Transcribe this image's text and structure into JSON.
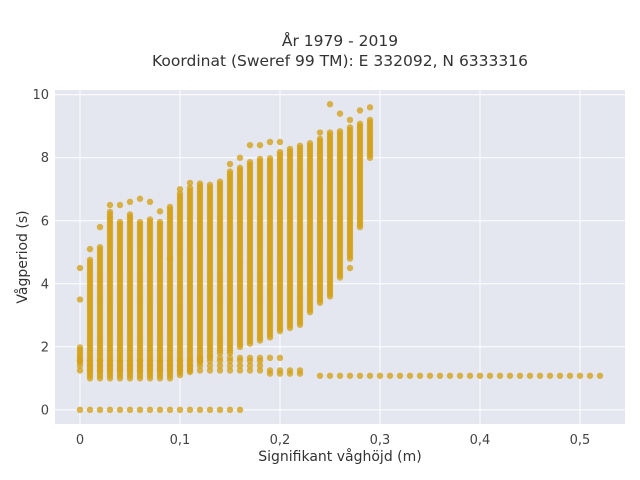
{
  "chart_data": {
    "type": "scatter",
    "title": "År 1979 - 2019",
    "subtitle": "Koordinat (Sweref 99 TM): E 332092, N 6333316",
    "xlabel": "Signifikant våghöjd (m)",
    "ylabel": "Vågperiod (s)",
    "xlim": [
      -0.025,
      0.545
    ],
    "ylim": [
      -0.45,
      10.15
    ],
    "x_ticks": [
      0,
      0.1,
      0.2,
      0.3,
      0.4,
      0.5
    ],
    "x_tick_labels": [
      "0",
      "0,1",
      "0,2",
      "0,3",
      "0,4",
      "0,5"
    ],
    "y_ticks": [
      0,
      2,
      4,
      6,
      8,
      10
    ],
    "y_tick_labels": [
      "0",
      "2",
      "4",
      "6",
      "8",
      "10"
    ],
    "grid": true,
    "background": "#e5e7f0",
    "marker_color": "#d4a017",
    "legend": "none",
    "x_step": 0.01,
    "clusters": [
      {
        "x": 0.0,
        "y_min": 1.5,
        "y_max": 2.0,
        "outliers": [
          3.5,
          4.5
        ]
      },
      {
        "x": 0.01,
        "y_min": 1.0,
        "y_max": 4.8,
        "outliers": [
          5.1
        ]
      },
      {
        "x": 0.02,
        "y_min": 1.0,
        "y_max": 5.2,
        "outliers": [
          5.8
        ]
      },
      {
        "x": 0.03,
        "y_min": 1.0,
        "y_max": 6.3,
        "outliers": [
          6.5
        ]
      },
      {
        "x": 0.04,
        "y_min": 1.0,
        "y_max": 6.0,
        "outliers": [
          6.5
        ]
      },
      {
        "x": 0.05,
        "y_min": 1.0,
        "y_max": 6.2,
        "outliers": [
          6.6
        ]
      },
      {
        "x": 0.06,
        "y_min": 1.0,
        "y_max": 6.0,
        "outliers": [
          6.7
        ]
      },
      {
        "x": 0.07,
        "y_min": 1.0,
        "y_max": 6.1,
        "outliers": [
          6.6
        ]
      },
      {
        "x": 0.08,
        "y_min": 1.0,
        "y_max": 6.0,
        "outliers": [
          6.3
        ]
      },
      {
        "x": 0.09,
        "y_min": 1.0,
        "y_max": 6.5,
        "outliers": [
          4.8
        ]
      },
      {
        "x": 0.1,
        "y_min": 1.1,
        "y_max": 6.9,
        "outliers": [
          7.0
        ]
      },
      {
        "x": 0.11,
        "y_min": 1.2,
        "y_max": 7.1,
        "outliers": [
          7.2
        ]
      },
      {
        "x": 0.12,
        "y_min": 1.5,
        "y_max": 7.2,
        "outliers": []
      },
      {
        "x": 0.13,
        "y_min": 1.7,
        "y_max": 7.2,
        "outliers": []
      },
      {
        "x": 0.14,
        "y_min": 1.8,
        "y_max": 7.3,
        "outliers": []
      },
      {
        "x": 0.15,
        "y_min": 1.8,
        "y_max": 7.6,
        "outliers": [
          7.8
        ]
      },
      {
        "x": 0.16,
        "y_min": 2.0,
        "y_max": 7.7,
        "outliers": [
          8.0
        ]
      },
      {
        "x": 0.17,
        "y_min": 2.1,
        "y_max": 7.9,
        "outliers": [
          8.4
        ]
      },
      {
        "x": 0.18,
        "y_min": 2.2,
        "y_max": 8.0,
        "outliers": [
          8.4
        ]
      },
      {
        "x": 0.19,
        "y_min": 2.3,
        "y_max": 8.0,
        "outliers": [
          8.5
        ]
      },
      {
        "x": 0.2,
        "y_min": 2.5,
        "y_max": 8.2,
        "outliers": [
          8.5
        ]
      },
      {
        "x": 0.21,
        "y_min": 2.6,
        "y_max": 8.3,
        "outliers": []
      },
      {
        "x": 0.22,
        "y_min": 2.7,
        "y_max": 8.4,
        "outliers": []
      },
      {
        "x": 0.23,
        "y_min": 3.1,
        "y_max": 8.5,
        "outliers": []
      },
      {
        "x": 0.24,
        "y_min": 3.4,
        "y_max": 8.6,
        "outliers": [
          8.8
        ]
      },
      {
        "x": 0.25,
        "y_min": 3.6,
        "y_max": 8.8,
        "outliers": [
          9.7
        ]
      },
      {
        "x": 0.26,
        "y_min": 4.2,
        "y_max": 8.9,
        "outliers": [
          9.4
        ]
      },
      {
        "x": 0.27,
        "y_min": 4.8,
        "y_max": 9.0,
        "outliers": [
          4.5,
          9.2
        ]
      },
      {
        "x": 0.28,
        "y_min": 5.8,
        "y_max": 9.1,
        "outliers": [
          9.5
        ]
      },
      {
        "x": 0.29,
        "y_min": 8.0,
        "y_max": 9.2,
        "outliers": [
          9.6
        ]
      }
    ],
    "swell_band": {
      "x_from": 0.0,
      "x_to": 0.52,
      "x_step": 0.01
    },
    "zero_band": {
      "x_from": 0.0,
      "x_to": 0.16,
      "x_step": 0.01,
      "y": 0
    }
  }
}
